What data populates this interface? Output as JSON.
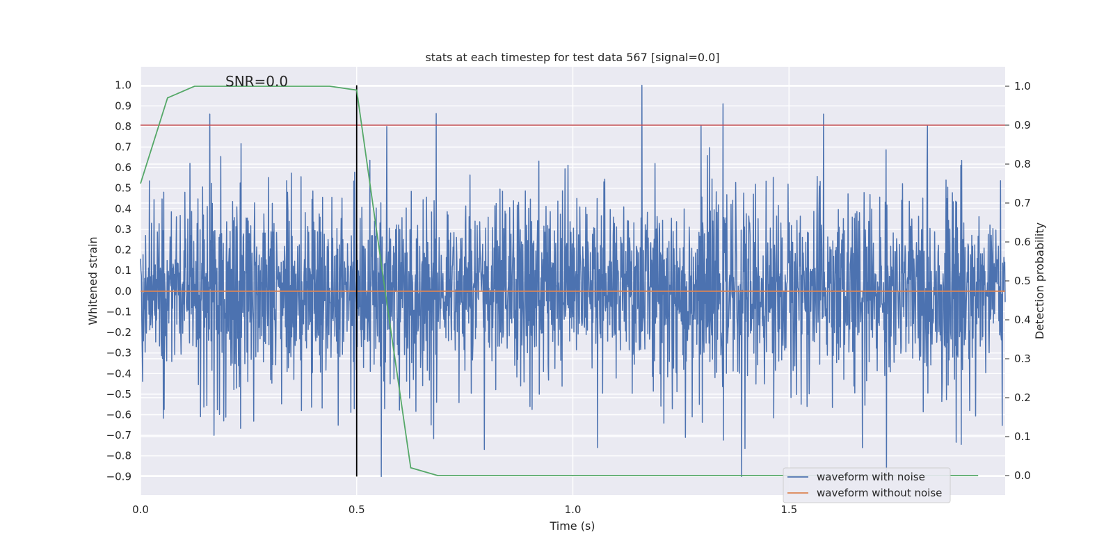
{
  "chart_data": {
    "type": "line",
    "title": "stats at each timestep for test data 567 [signal=0.0]",
    "xlabel": "Time (s)",
    "ylabel_left": "Whitened strain",
    "ylabel_right": "Detection probability",
    "xlim": [
      0.0,
      2.0
    ],
    "ylim_left": [
      -0.99,
      1.09
    ],
    "ylim_right": [
      -0.05,
      1.05
    ],
    "xticks": [
      0.0,
      0.5,
      1.0,
      1.5
    ],
    "xtick_labels": [
      "0.0",
      "0.5",
      "1.0",
      "1.5"
    ],
    "yticks_left": [
      -0.9,
      -0.8,
      -0.7,
      -0.6,
      -0.5,
      -0.4,
      -0.3,
      -0.2,
      -0.1,
      0.0,
      0.1,
      0.2,
      0.3,
      0.4,
      0.5,
      0.6,
      0.7,
      0.8,
      0.9,
      1.0
    ],
    "yticks_left_labels": [
      "−0.9",
      "−0.8",
      "−0.7",
      "−0.6",
      "−0.5",
      "−0.4",
      "−0.3",
      "−0.2",
      "−0.1",
      "0.0",
      "0.1",
      "0.2",
      "0.3",
      "0.4",
      "0.5",
      "0.6",
      "0.7",
      "0.8",
      "0.9",
      "1.0"
    ],
    "yticks_right": [
      0.0,
      0.1,
      0.2,
      0.3,
      0.4,
      0.5,
      0.6,
      0.7,
      0.8,
      0.9,
      1.0
    ],
    "yticks_right_labels": [
      "0.0",
      "0.1",
      "0.2",
      "0.3",
      "0.4",
      "0.5",
      "0.6",
      "0.7",
      "0.8",
      "0.9",
      "1.0"
    ],
    "grid": true,
    "legend_position": "lower-right",
    "annotation": "SNR=0.0",
    "series": [
      {
        "name": "waveform with noise",
        "axis": "left",
        "color": "#4c72b0",
        "kind": "noise",
        "x_range": [
          0.0,
          2.0
        ],
        "num_points": 2048,
        "approx_std": 0.25,
        "approx_range": [
          -0.9,
          1.0
        ],
        "peaks": [
          {
            "x": 0.16,
            "y": 0.86
          },
          {
            "x": 0.57,
            "y": 0.8
          },
          {
            "x": 1.16,
            "y": 1.0
          },
          {
            "x": 1.58,
            "y": 0.86
          },
          {
            "x": 1.39,
            "y": -0.9
          },
          {
            "x": 0.17,
            "y": -0.7
          },
          {
            "x": 1.26,
            "y": -0.71
          },
          {
            "x": 1.67,
            "y": -0.76
          }
        ]
      },
      {
        "name": "waveform without noise",
        "axis": "left",
        "color": "#dd8452",
        "x": [
          0.0,
          2.0
        ],
        "y": [
          0.0,
          0.0
        ]
      },
      {
        "name": "",
        "axis": "right",
        "color": "#55a868",
        "x": [
          0.0,
          0.0625,
          0.125,
          0.1875,
          0.25,
          0.3125,
          0.375,
          0.4375,
          0.5,
          0.5625,
          0.625,
          0.6875,
          0.75,
          1.0,
          1.25,
          1.5,
          1.75,
          1.9375
        ],
        "y": [
          0.75,
          0.97,
          1.0,
          1.0,
          1.0,
          1.0,
          1.0,
          1.0,
          0.99,
          0.5,
          0.02,
          0.0,
          0.0,
          0.0,
          0.0,
          0.0,
          0.0,
          0.0
        ]
      }
    ],
    "threshold_line": {
      "axis": "right",
      "y": 0.9,
      "color": "#c44e52"
    },
    "marker_line": {
      "x": 0.5,
      "y_range": [
        -0.9,
        1.0
      ],
      "color": "#000000"
    }
  }
}
